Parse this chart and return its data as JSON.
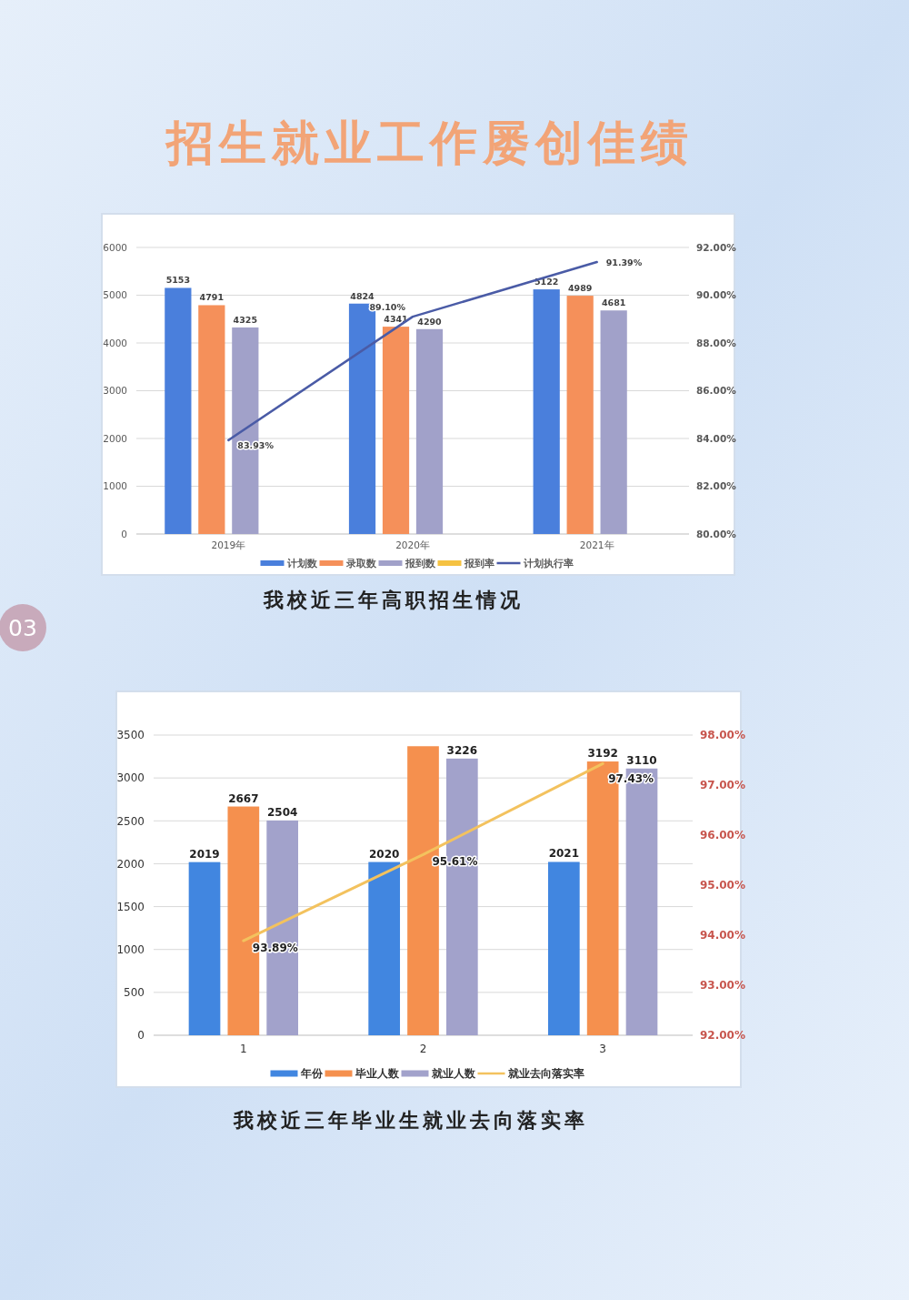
{
  "chart_data": [
    {
      "type": "bar",
      "title": "我校近三年高职招生情况",
      "annotations": [
        "招生就业工作屡创佳绩",
        "03"
      ],
      "categories": [
        "2019年",
        "2020年",
        "2021年"
      ],
      "series": [
        {
          "name": "计划数",
          "color": "#4a7fdc",
          "values": [
            5153,
            4824,
            5122
          ],
          "value_labels": [
            "5153",
            "4824",
            "5122"
          ]
        },
        {
          "name": "录取数",
          "color": "#f5905a",
          "values": [
            4791,
            4341,
            4989
          ],
          "value_labels": [
            "4791",
            "4341",
            "4989"
          ]
        },
        {
          "name": "报到数",
          "color": "#a1a1c9",
          "values": [
            4325,
            4290,
            4681
          ],
          "value_labels": [
            "4325",
            "4290",
            "4681"
          ]
        },
        {
          "name": "报到率",
          "color": "#f5c242",
          "values": [
            null,
            null,
            null
          ]
        },
        {
          "name": "计划执行率",
          "type": "line",
          "axis": "y2",
          "color": "#4a5ba6",
          "values": [
            83.93,
            89.1,
            91.39
          ],
          "value_labels": [
            "83.93%",
            "89.10%",
            "91.39%"
          ]
        }
      ],
      "ylim": [
        0,
        6000
      ],
      "yticks": [
        0,
        1000,
        2000,
        3000,
        4000,
        5000,
        6000
      ],
      "y2lim": [
        80,
        92
      ],
      "y2ticks": [
        {
          "value": 80,
          "label": "80.00%"
        },
        {
          "value": 82,
          "label": "82.00%"
        },
        {
          "value": 84,
          "label": "84.00%"
        },
        {
          "value": 86,
          "label": "86.00%"
        },
        {
          "value": 88,
          "label": "88.00%"
        },
        {
          "value": 90,
          "label": "90.00%"
        },
        {
          "value": 92,
          "label": "92.00%"
        }
      ],
      "grid": "y",
      "legend": "bottom"
    },
    {
      "type": "bar",
      "title": "我校近三年毕业生就业去向落实率",
      "categories": [
        "1",
        "2",
        "3"
      ],
      "series": [
        {
          "name": "年份",
          "color": "#4186e0",
          "values": [
            2019,
            2020,
            2021
          ],
          "value_labels": [
            "2019",
            "2020",
            "2021"
          ]
        },
        {
          "name": "毕业人数",
          "color": "#f5904e",
          "values": [
            2667,
            3370,
            3192
          ],
          "value_labels": [
            "2667",
            null,
            "3192"
          ]
        },
        {
          "name": "就业人数",
          "color": "#a2a2cb",
          "values": [
            2504,
            3226,
            3110
          ],
          "value_labels": [
            "2504",
            "3226",
            "3110"
          ]
        },
        {
          "name": "就业去向落实率",
          "type": "line",
          "axis": "y2",
          "color": "#f3c25e",
          "values": [
            93.89,
            95.61,
            97.43
          ],
          "value_labels": [
            "93.89%",
            "95.61%",
            "97.43%"
          ]
        }
      ],
      "ylim": [
        0,
        3500
      ],
      "yticks": [
        0,
        500,
        1000,
        1500,
        2000,
        2500,
        3000,
        3500
      ],
      "y2lim": [
        92,
        98
      ],
      "y2ticks": [
        {
          "value": 92,
          "label": "92.00%"
        },
        {
          "value": 93,
          "label": "93.00%"
        },
        {
          "value": 94,
          "label": "94.00%"
        },
        {
          "value": 95,
          "label": "95.00%"
        },
        {
          "value": 96,
          "label": "96.00%"
        },
        {
          "value": 97,
          "label": "97.00%"
        },
        {
          "value": 98,
          "label": "98.00%"
        }
      ],
      "grid": "y",
      "legend": "bottom"
    }
  ]
}
